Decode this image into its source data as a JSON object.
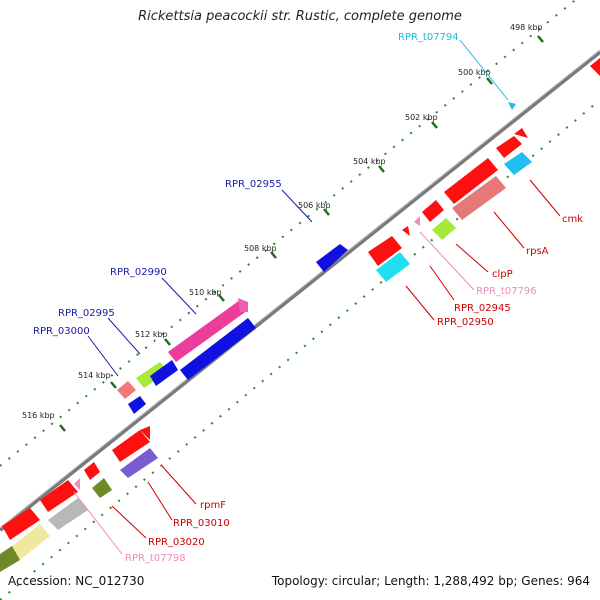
{
  "title": "Rickettsia peacockii str. Rustic, complete genome",
  "footer": {
    "accession": "Accession: NC_012730",
    "info": "Topology: circular; Length: 1,288,492 bp; Genes: 964"
  },
  "colors": {
    "backbone": "#808080",
    "ticks": "#2a8a2a",
    "label_blue": "#1a1aa8",
    "label_red": "#cc0000",
    "label_pink": "#f08cbc",
    "label_cyan": "#1fb8e8"
  },
  "ticks": [
    {
      "label": "498 kbp"
    },
    {
      "label": "500 kbp"
    },
    {
      "label": "502 kbp"
    },
    {
      "label": "504 kbp"
    },
    {
      "label": "506 kbp"
    },
    {
      "label": "508 kbp"
    },
    {
      "label": "510 kbp"
    },
    {
      "label": "512 kbp"
    },
    {
      "label": "514 kbp"
    },
    {
      "label": "516 kbp"
    }
  ],
  "gene_labels": [
    {
      "text": "RPR_t07794",
      "color": "#1fb8e8"
    },
    {
      "text": "RPR_02955",
      "color": "#1a1aa8"
    },
    {
      "text": "RPR_02990",
      "color": "#1a1aa8"
    },
    {
      "text": "RPR_02995",
      "color": "#1a1aa8"
    },
    {
      "text": "RPR_03000",
      "color": "#1a1aa8"
    },
    {
      "text": "cmk",
      "color": "#cc0000"
    },
    {
      "text": "rpsA",
      "color": "#cc0000"
    },
    {
      "text": "clpP",
      "color": "#cc0000"
    },
    {
      "text": "RPR_t07796",
      "color": "#f08cbc"
    },
    {
      "text": "RPR_02945",
      "color": "#cc0000"
    },
    {
      "text": "RPR_02950",
      "color": "#cc0000"
    },
    {
      "text": "rpmF",
      "color": "#cc0000"
    },
    {
      "text": "RPR_03010",
      "color": "#cc0000"
    },
    {
      "text": "RPR_03020",
      "color": "#cc0000"
    },
    {
      "text": "RPR_t07798",
      "color": "#f08cbc"
    }
  ]
}
